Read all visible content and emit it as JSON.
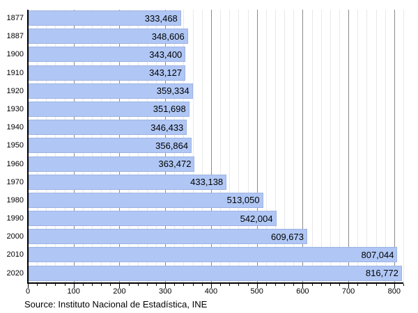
{
  "chart_data": {
    "type": "bar",
    "orientation": "horizontal",
    "title": "",
    "xlabel": "",
    "ylabel": "",
    "categories": [
      "1877",
      "1887",
      "1900",
      "1910",
      "1920",
      "1930",
      "1940",
      "1950",
      "1960",
      "1970",
      "1980",
      "1990",
      "2000",
      "2010",
      "2020"
    ],
    "values": [
      333468,
      348606,
      343400,
      343127,
      359334,
      351698,
      346433,
      356864,
      363472,
      433138,
      513050,
      542004,
      609673,
      807044,
      816772
    ],
    "value_labels": [
      "333,468",
      "348,606",
      "343,400",
      "343,127",
      "359,334",
      "351,698",
      "346,433",
      "356,864",
      "363,472",
      "433,138",
      "513,050",
      "542,004",
      "609,673",
      "807,044",
      "816,772"
    ],
    "xlim": [
      0,
      820000
    ],
    "x_major_step": 100000,
    "x_minor_step": 20000,
    "x_tick_labels": [
      "0",
      "100",
      "200",
      "300",
      "400",
      "500",
      "600",
      "700",
      "800"
    ],
    "x_tick_unit": "thousands",
    "grid": true,
    "legend": false
  },
  "source": "Source: Instituto Nacional de Estadística, INE",
  "colors": {
    "bar_fill": "#b0c7f5",
    "bar_edge": "#9db2e2",
    "grid_major": "#8a8a8a",
    "grid_minor": "#e8e8e8",
    "axis": "#000000",
    "text": "#000000",
    "background": "#ffffff"
  }
}
